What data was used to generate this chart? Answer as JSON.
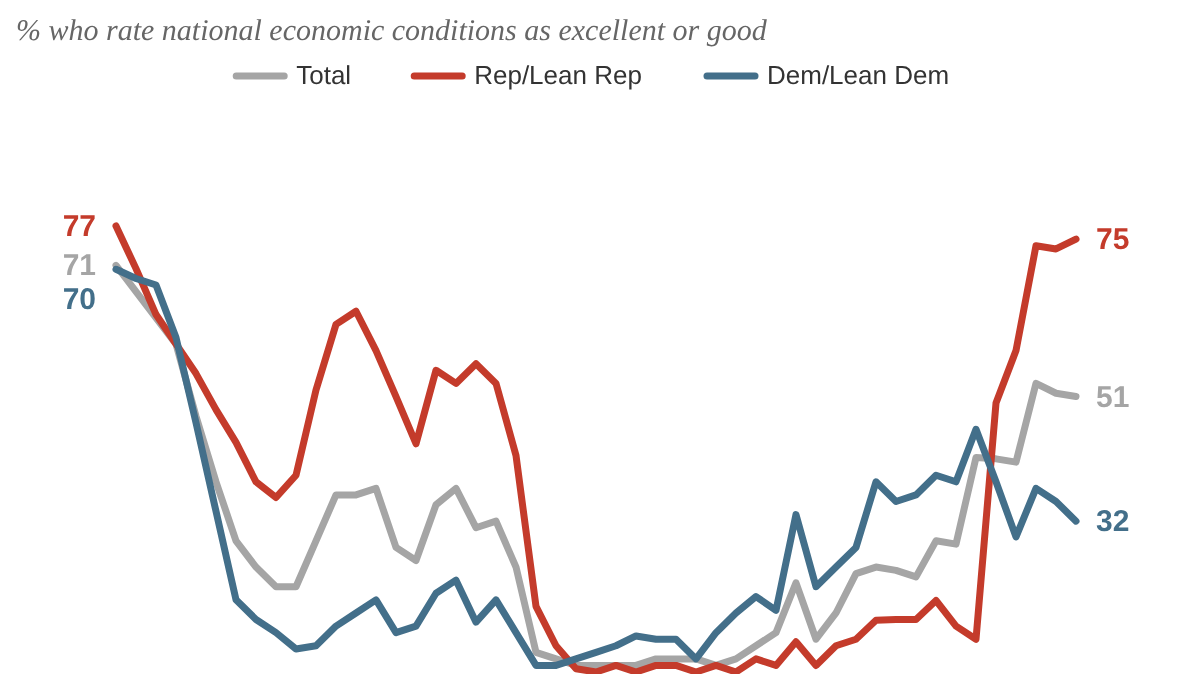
{
  "chart_data": {
    "type": "line",
    "subtitle": "% who rate national economic conditions as excellent or good",
    "categories": [
      null,
      null,
      null,
      null,
      null,
      null,
      null,
      null,
      null,
      null,
      null,
      null,
      null,
      null,
      null,
      null,
      null,
      null,
      null,
      null,
      null,
      null,
      null,
      null,
      null,
      null,
      null,
      null,
      null,
      null,
      null,
      null,
      null,
      null,
      null,
      null,
      null,
      null,
      null,
      null,
      null,
      null,
      null,
      null,
      null,
      null,
      null,
      null,
      null
    ],
    "legend": "top",
    "marker": "none",
    "line_style": "solid",
    "series": [
      {
        "name": "Total",
        "color": "#a5a5a5",
        "values": [
          71,
          67,
          63,
          59,
          48,
          38,
          29,
          25,
          22,
          22,
          29,
          36,
          36,
          37,
          28,
          26,
          34.5,
          37,
          31,
          32,
          25,
          12,
          11,
          10,
          10,
          10,
          10,
          11,
          11,
          11,
          10,
          11,
          13,
          15,
          22.6,
          14,
          18,
          24,
          25,
          24.5,
          23.5,
          29,
          28.5,
          41.7,
          41.5,
          41,
          53,
          51.5,
          51
        ],
        "value_labels": [
          "71",
          null,
          null,
          null,
          null,
          null,
          null,
          null,
          null,
          null,
          null,
          null,
          null,
          null,
          null,
          null,
          null,
          null,
          null,
          null,
          null,
          null,
          null,
          null,
          null,
          null,
          null,
          null,
          null,
          null,
          null,
          null,
          null,
          null,
          null,
          null,
          null,
          null,
          null,
          null,
          null,
          null,
          null,
          null,
          null,
          null,
          null,
          null,
          "51"
        ]
      },
      {
        "name": "Rep/Lean Rep",
        "color": "#c43b2b",
        "values": [
          77,
          70.5,
          63.5,
          59,
          54.5,
          49,
          44,
          38,
          35.6,
          39,
          52,
          62,
          64,
          58,
          51,
          43.8,
          55,
          53,
          56,
          53,
          42,
          19,
          13,
          9.5,
          9,
          10,
          9,
          10,
          10,
          9,
          10,
          9,
          11,
          10,
          13.6,
          10,
          13,
          14,
          16.9,
          17,
          17,
          19.9,
          16,
          14,
          50,
          58,
          74,
          73.5,
          75
        ],
        "value_labels": [
          "77",
          null,
          null,
          null,
          null,
          null,
          null,
          null,
          null,
          null,
          null,
          null,
          null,
          null,
          null,
          null,
          null,
          null,
          null,
          null,
          null,
          null,
          null,
          null,
          null,
          null,
          null,
          null,
          null,
          null,
          null,
          null,
          null,
          null,
          null,
          null,
          null,
          null,
          null,
          null,
          null,
          null,
          null,
          null,
          null,
          null,
          null,
          null,
          "75"
        ]
      },
      {
        "name": "Dem/Lean Dem",
        "color": "#436f8a",
        "values": [
          70.4,
          69,
          68,
          60,
          47,
          33.5,
          20,
          17,
          15,
          12.5,
          13,
          16,
          18,
          20,
          15,
          16,
          21,
          23,
          16.6,
          20,
          15,
          10,
          10,
          11,
          12,
          13,
          14.5,
          14,
          14,
          11,
          15,
          18,
          20.5,
          18.4,
          33,
          22,
          25,
          28,
          38,
          35,
          36,
          39,
          38,
          46,
          38,
          29.6,
          37,
          35,
          32
        ],
        "value_labels": [
          "70",
          null,
          null,
          null,
          null,
          null,
          null,
          null,
          null,
          null,
          null,
          null,
          null,
          null,
          null,
          null,
          null,
          null,
          null,
          null,
          null,
          null,
          null,
          null,
          null,
          null,
          null,
          null,
          null,
          null,
          null,
          null,
          null,
          null,
          null,
          null,
          null,
          null,
          null,
          null,
          null,
          null,
          null,
          null,
          null,
          null,
          null,
          null,
          "32"
        ]
      }
    ]
  }
}
